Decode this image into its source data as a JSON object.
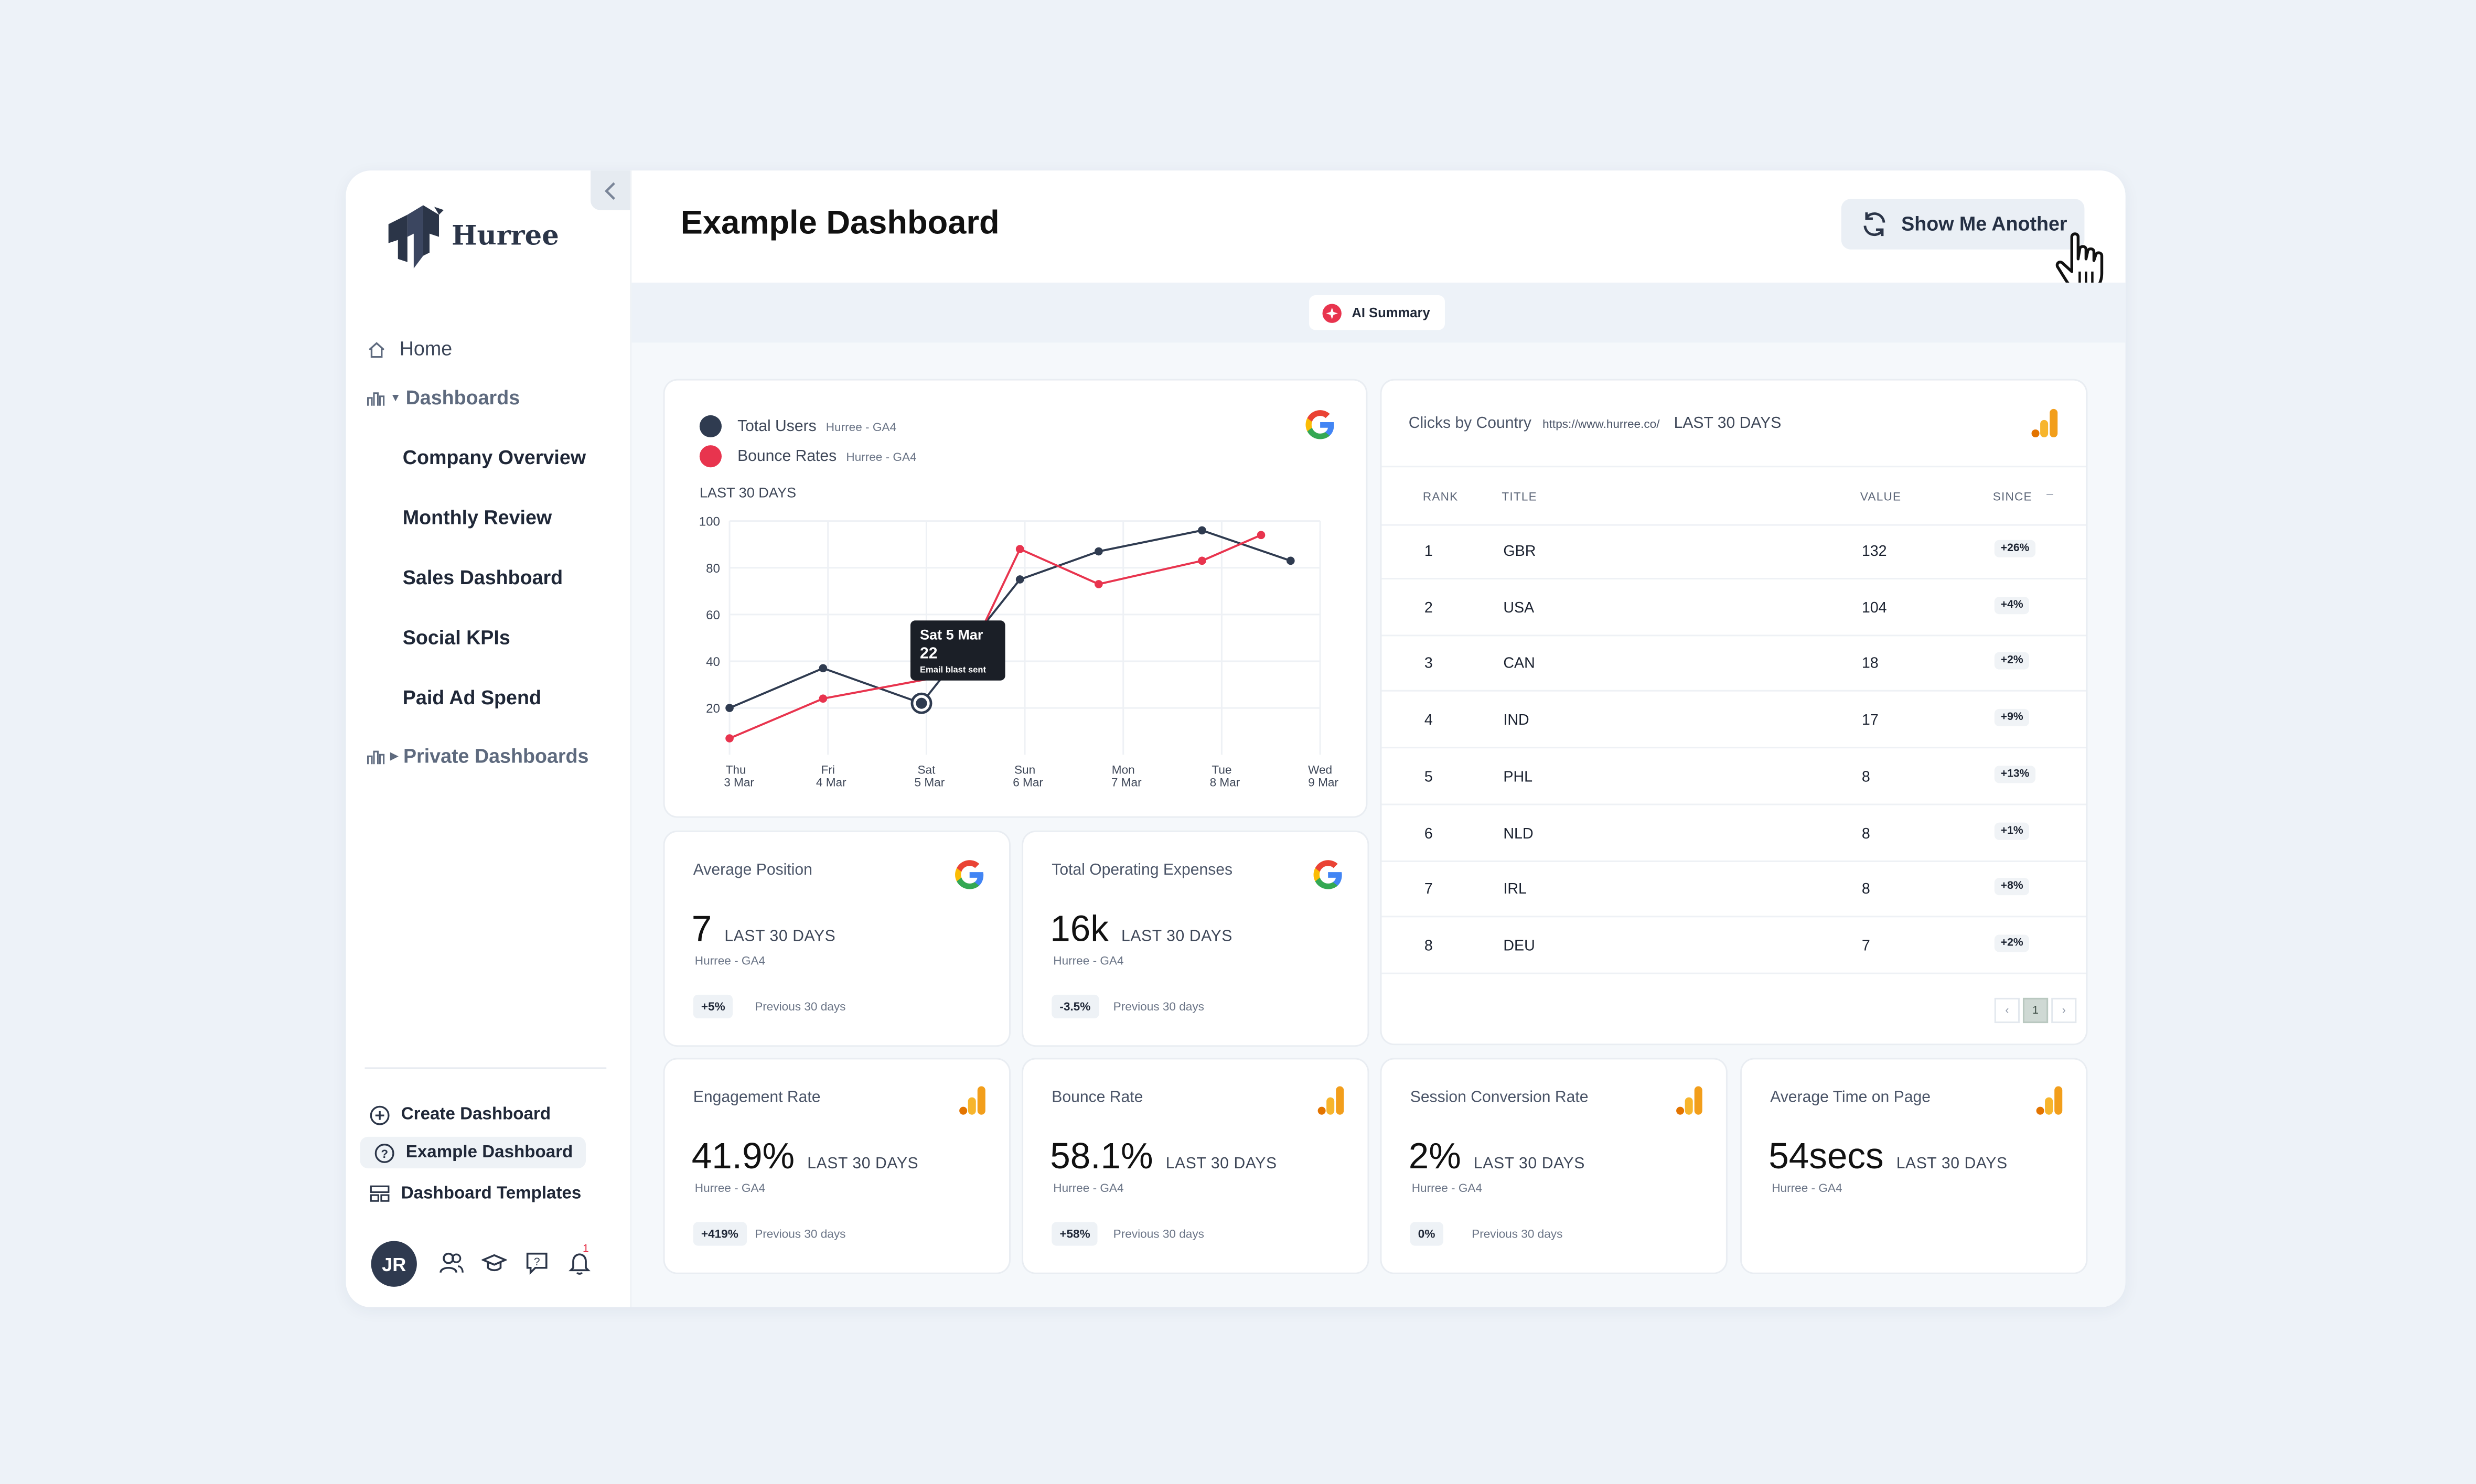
{
  "brand": {
    "name": "Hurree"
  },
  "sidebar": {
    "home": "Home",
    "dashboards": "Dashboards",
    "dashboard_items": [
      "Company Overview",
      "Monthly Review",
      "Sales Dashboard",
      "Social KPIs",
      "Paid Ad Spend"
    ],
    "private_dashboards": "Private Dashboards",
    "bottom": {
      "create": "Create Dashboard",
      "example": "Example Dashboard",
      "templates": "Dashboard Templates"
    },
    "user_initials": "JR",
    "notification_count": "1"
  },
  "header": {
    "title": "Example Dashboard",
    "show_another": "Show Me Another",
    "ai_summary": "AI Summary"
  },
  "colors": {
    "navy": "#2f3b50",
    "red": "#e8344e",
    "accent_orange": "#f29e1b"
  },
  "line_card": {
    "legend": [
      {
        "name": "Total Users",
        "source": "Hurree - GA4"
      },
      {
        "name": "Bounce Rates",
        "source": "Hurree - GA4"
      }
    ],
    "period": "LAST 30 DAYS",
    "tooltip": {
      "date": "Sat 5 Mar",
      "value": "22",
      "note": "Email blast sent"
    }
  },
  "chart_data": {
    "type": "line",
    "x": [
      [
        "Thu",
        "3 Mar"
      ],
      [
        "Fri",
        "4 Mar"
      ],
      [
        "Sat",
        "5 Mar"
      ],
      [
        "Sun",
        "6 Mar"
      ],
      [
        "Mon",
        "7 Mar"
      ],
      [
        "Tue",
        "8 Mar"
      ],
      [
        "Wed",
        "9 Mar"
      ]
    ],
    "x_tick_positions": [
      0,
      1,
      2,
      3,
      4,
      5,
      6
    ],
    "yticks": [
      20,
      40,
      60,
      80,
      100
    ],
    "ylim": [
      0,
      100
    ],
    "grid": true,
    "series": [
      {
        "name": "Total Users",
        "color": "#2f3b50",
        "points": [
          [
            0,
            20
          ],
          [
            0.95,
            37
          ],
          [
            1.95,
            22
          ],
          [
            2.95,
            75
          ],
          [
            3.75,
            87
          ],
          [
            4.8,
            96
          ],
          [
            5.7,
            83
          ]
        ]
      },
      {
        "name": "Bounce Rates",
        "color": "#e8344e",
        "points": [
          [
            0,
            7
          ],
          [
            0.95,
            24
          ],
          [
            2.35,
            35
          ],
          [
            2.95,
            88
          ],
          [
            3.75,
            73
          ],
          [
            4.8,
            83
          ],
          [
            5.4,
            94
          ]
        ]
      }
    ]
  },
  "metrics": [
    {
      "title": "Average Position",
      "value": "7",
      "period": "LAST 30 DAYS",
      "source": "Hurree - GA4",
      "delta": "+5%",
      "prev": "Previous 30 days",
      "brand": "google"
    },
    {
      "title": "Total Operating Expenses",
      "value": "16k",
      "period": "LAST 30 DAYS",
      "source": "Hurree - GA4",
      "delta": "-3.5%",
      "prev": "Previous 30 days",
      "brand": "google"
    },
    {
      "title": "Engagement Rate",
      "value": "41.9%",
      "period": "LAST 30 DAYS",
      "source": "Hurree - GA4",
      "delta": "+419%",
      "prev": "Previous 30 days",
      "brand": "analytics"
    },
    {
      "title": "Bounce Rate",
      "value": "58.1%",
      "period": "LAST 30 DAYS",
      "source": "Hurree - GA4",
      "delta": "+58%",
      "prev": "Previous 30 days",
      "brand": "analytics"
    },
    {
      "title": "Session Conversion Rate",
      "value": "2%",
      "period": "LAST 30 DAYS",
      "source": "Hurree - GA4",
      "delta": "0%",
      "prev": "Previous 30 days",
      "brand": "analytics"
    },
    {
      "title": "Average Time on Page",
      "value": "54secs",
      "period": "LAST 30 DAYS",
      "source": "Hurree - GA4",
      "brand": "analytics"
    }
  ],
  "clicks_table": {
    "title": "Clicks by Country",
    "url": "https://www.hurree.co/",
    "period": "LAST 30 DAYS",
    "columns": [
      "RANK",
      "TITLE",
      "VALUE",
      "SINCE"
    ],
    "rows": [
      [
        "1",
        "GBR",
        "132",
        "+26%"
      ],
      [
        "2",
        "USA",
        "104",
        "+4%"
      ],
      [
        "3",
        "CAN",
        "18",
        "+2%"
      ],
      [
        "4",
        "IND",
        "17",
        "+9%"
      ],
      [
        "5",
        "PHL",
        "8",
        "+13%"
      ],
      [
        "6",
        "NLD",
        "8",
        "+1%"
      ],
      [
        "7",
        "IRL",
        "8",
        "+8%"
      ],
      [
        "8",
        "DEU",
        "7",
        "+2%"
      ]
    ],
    "page": "1"
  }
}
